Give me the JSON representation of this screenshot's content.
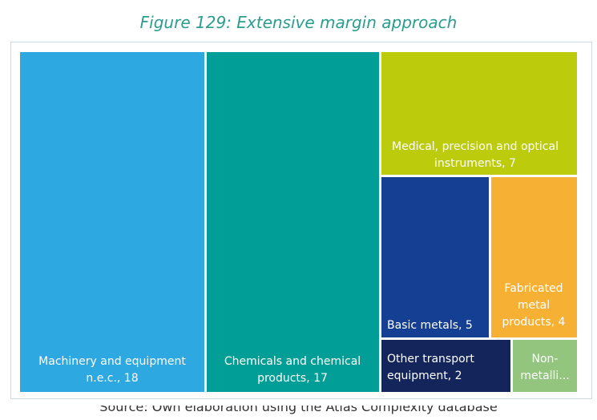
{
  "figure_title": "Figure 129: Extensive margin approach",
  "source_text": "Source: Own elaboration using the Atlas Complexity database",
  "chart_data": {
    "type": "treemap",
    "title": "Figure 129: Extensive margin approach",
    "items": [
      {
        "name": "Machinery and equipment n.e.c.",
        "value": 18,
        "label_lines": [
          "Machinery and equipment",
          "n.e.c., 18"
        ],
        "color": "#2ea8e0",
        "text_color": "#ffffff"
      },
      {
        "name": "Chemicals and chemical products",
        "value": 17,
        "label_lines": [
          "Chemicals and chemical",
          "products, 17"
        ],
        "color": "#009e96",
        "text_color": "#ffffff"
      },
      {
        "name": "Medical, precision and optical instruments",
        "value": 7,
        "label_lines": [
          "Medical, precision and optical",
          "instruments, 7"
        ],
        "color": "#bccb0b",
        "text_color": "#ffffff"
      },
      {
        "name": "Basic metals",
        "value": 5,
        "label_lines": [
          "Basic metals, 5"
        ],
        "color": "#143f92",
        "text_color": "#ffffff"
      },
      {
        "name": "Fabricated metal products",
        "value": 4,
        "label_lines": [
          "Fabricated",
          "metal",
          "products, 4"
        ],
        "color": "#f6b135",
        "text_color": "#ffffff"
      },
      {
        "name": "Other transport equipment",
        "value": 2,
        "label_lines": [
          "Other transport",
          "equipment, 2"
        ],
        "color": "#14255c",
        "text_color": "#ffffff"
      },
      {
        "name": "Non-metallic",
        "value": 1,
        "label_lines": [
          "Non-",
          "metalli..."
        ],
        "color": "#93c57f",
        "text_color": "#ffffff"
      }
    ]
  }
}
